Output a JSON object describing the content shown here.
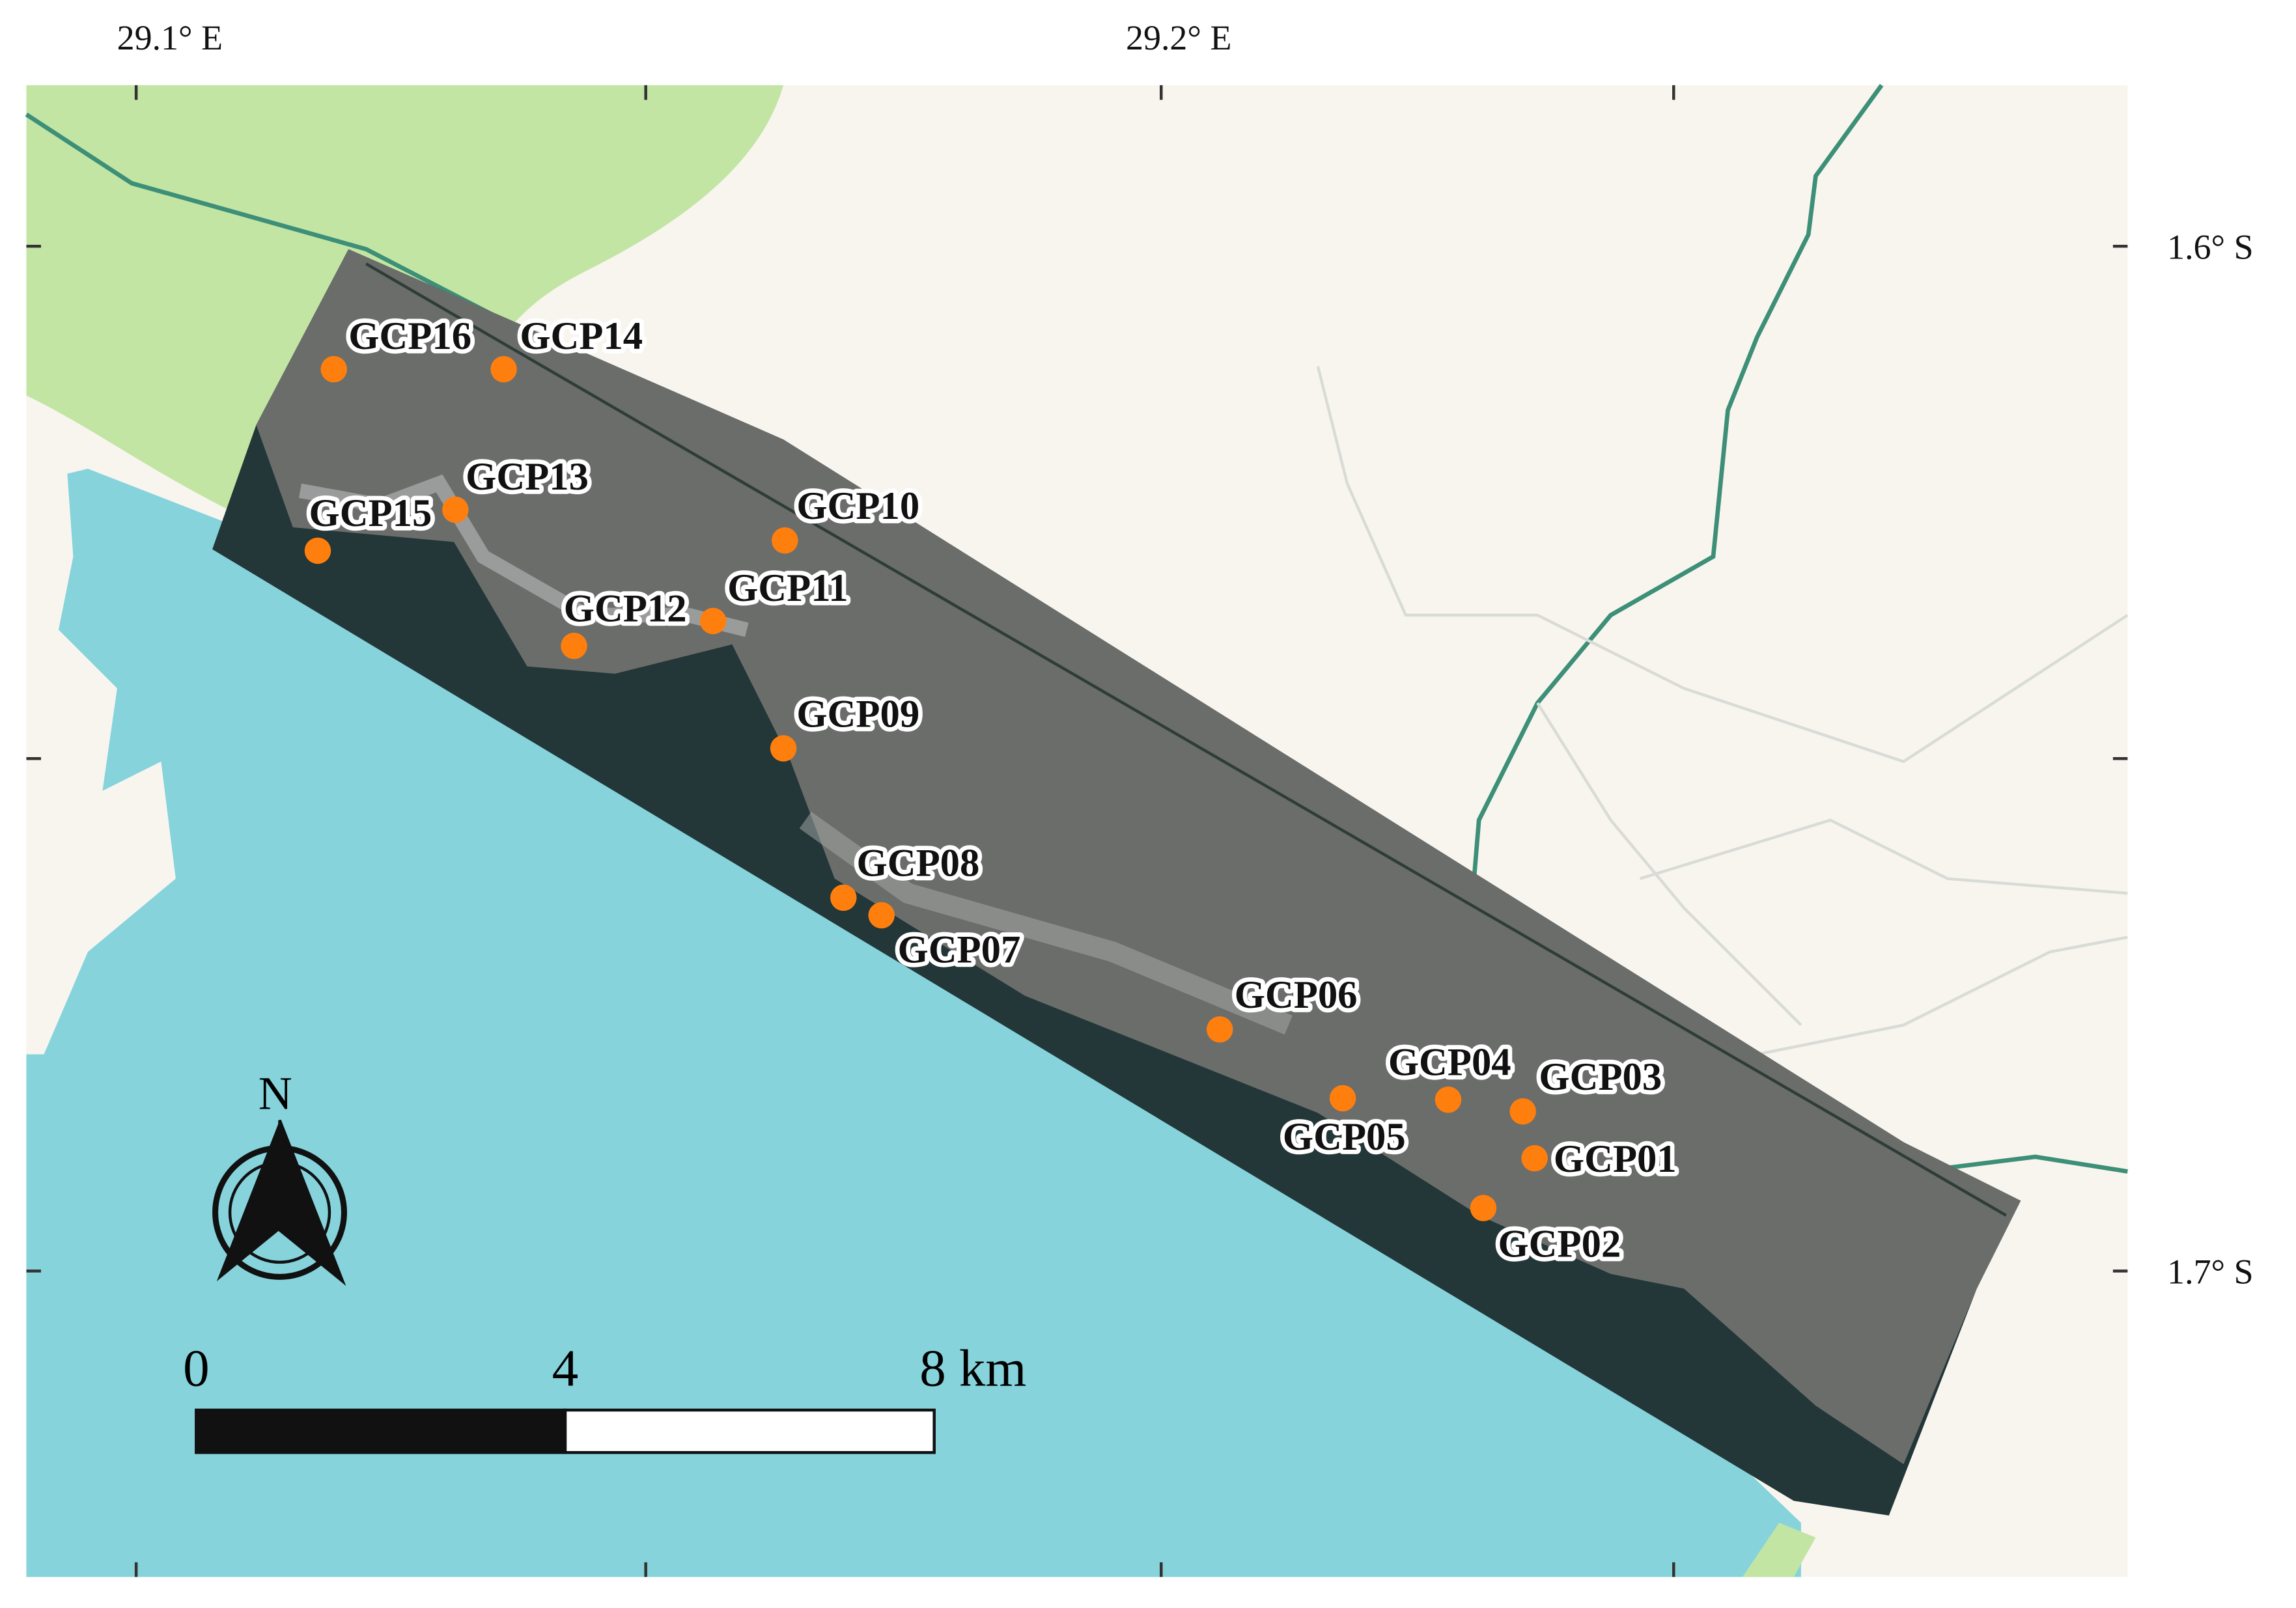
{
  "map": {
    "x_labels": [
      "29.1° E",
      "29.2° E"
    ],
    "y_labels": [
      "1.6° S",
      "1.7° S"
    ],
    "points": [
      {
        "label": "GCP16"
      },
      {
        "label": "GCP14"
      },
      {
        "label": "GCP13"
      },
      {
        "label": "GCP15"
      },
      {
        "label": "GCP10"
      },
      {
        "label": "GCP11"
      },
      {
        "label": "GCP12"
      },
      {
        "label": "GCP09"
      },
      {
        "label": "GCP08"
      },
      {
        "label": "GCP07"
      },
      {
        "label": "GCP06"
      },
      {
        "label": "GCP04"
      },
      {
        "label": "GCP05"
      },
      {
        "label": "GCP03"
      },
      {
        "label": "GCP01"
      },
      {
        "label": "GCP02"
      }
    ],
    "scale_bar": {
      "labels": [
        "0",
        "4",
        "8 km"
      ]
    },
    "north_arrow": "N"
  }
}
